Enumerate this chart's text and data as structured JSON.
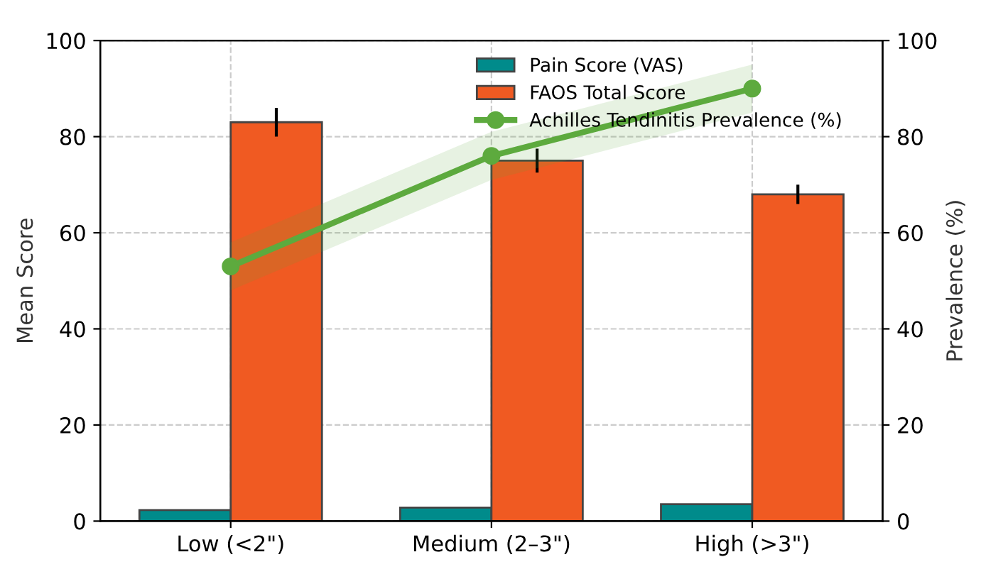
{
  "chart_data": {
    "type": "bar",
    "categories": [
      "Low (<2\")",
      "Medium (2–3\")",
      "High (>3\")"
    ],
    "ylabel": "Mean Score",
    "y2label": "Prevalence (%)",
    "ylim": [
      0,
      100
    ],
    "yticks": [
      0,
      20,
      40,
      60,
      80,
      100
    ],
    "y2lim": [
      0,
      100
    ],
    "y2ticks": [
      0,
      20,
      40,
      60,
      80,
      100
    ],
    "grid": true,
    "legend": "top right",
    "series": [
      {
        "name": "Pain Score (VAS)",
        "color": "#008b8b",
        "values": [
          2.3,
          2.8,
          3.5
        ]
      },
      {
        "name": "FAOS Total Score",
        "color": "#f05a22",
        "values": [
          83,
          75,
          68
        ],
        "errors": [
          3,
          2.5,
          2
        ]
      },
      {
        "name": "Achilles Tendinitis Prevalence (%)",
        "type": "line",
        "axis": "y2",
        "color": "#5daa3e",
        "values": [
          53,
          76,
          90
        ],
        "lower": [
          48,
          71,
          85
        ],
        "upper": [
          58,
          81,
          95
        ],
        "marker": "circle",
        "line_style": "solid"
      }
    ]
  }
}
